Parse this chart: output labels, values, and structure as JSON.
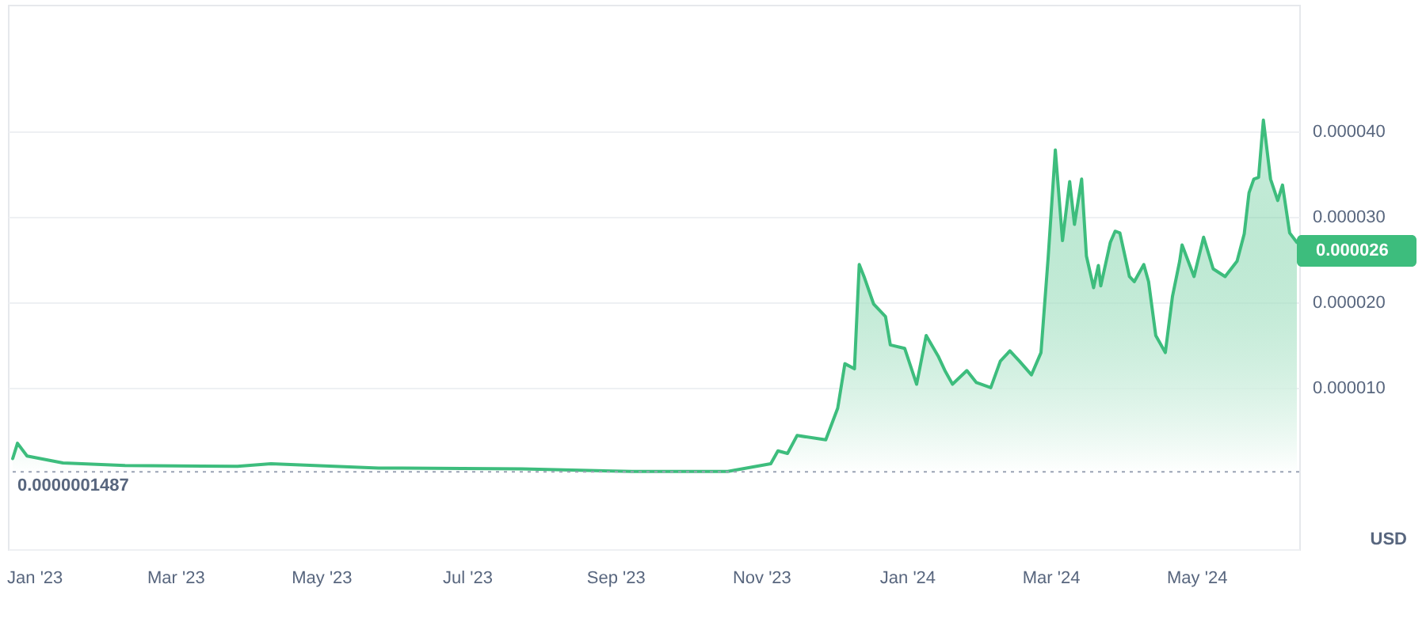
{
  "chart_data": {
    "type": "area",
    "x": [
      "2022-12-23",
      "2022-12-25",
      "2022-12-29",
      "2023-01-13",
      "2023-02-08",
      "2023-03-27",
      "2023-04-10",
      "2023-05-25",
      "2023-07-24",
      "2023-09-08",
      "2023-10-04",
      "2023-10-18",
      "2023-11-05",
      "2023-11-08",
      "2023-11-12",
      "2023-11-16",
      "2023-11-28",
      "2023-12-03",
      "2023-12-06",
      "2023-12-10",
      "2023-12-12",
      "2023-12-14",
      "2023-12-18",
      "2023-12-23",
      "2023-12-25",
      "2023-12-31",
      "2024-01-05",
      "2024-01-09",
      "2024-01-14",
      "2024-01-17",
      "2024-01-20",
      "2024-01-26",
      "2024-01-30",
      "2024-02-05",
      "2024-02-09",
      "2024-02-13",
      "2024-02-17",
      "2024-02-22",
      "2024-02-26",
      "2024-02-29",
      "2024-03-03",
      "2024-03-06",
      "2024-03-09",
      "2024-03-11",
      "2024-03-14",
      "2024-03-16",
      "2024-03-19",
      "2024-03-21",
      "2024-03-22",
      "2024-03-26",
      "2024-03-28",
      "2024-03-30",
      "2024-04-03",
      "2024-04-05",
      "2024-04-09",
      "2024-04-11",
      "2024-04-14",
      "2024-04-18",
      "2024-04-21",
      "2024-04-24",
      "2024-04-25",
      "2024-04-30",
      "2024-05-04",
      "2024-05-08",
      "2024-05-13",
      "2024-05-18",
      "2024-05-21",
      "2024-05-23",
      "2024-05-25",
      "2024-05-27",
      "2024-05-29",
      "2024-06-01",
      "2024-06-04",
      "2024-06-06",
      "2024-06-09",
      "2024-06-12"
    ],
    "series": [
      {
        "color": "#3dbd7d",
        "values": [
          1.7e-06,
          3.5e-06,
          2e-06,
          1.2e-06,
          9e-07,
          8e-07,
          1.1e-06,
          6e-07,
          5e-07,
          2e-07,
          2e-07,
          2e-07,
          1.1e-06,
          2.6e-06,
          2.3e-06,
          4.4e-06,
          3.9e-06,
          7.6e-06,
          1.28e-05,
          1.22e-05,
          2.44e-05,
          2.3e-05,
          1.98e-05,
          1.83e-05,
          1.5e-05,
          1.46e-05,
          1.04e-05,
          1.61e-05,
          1.37e-05,
          1.19e-05,
          1.04e-05,
          1.2e-05,
          1.06e-05,
          1e-05,
          1.31e-05,
          1.43e-05,
          1.31e-05,
          1.15e-05,
          1.41e-05,
          2.52e-05,
          3.78e-05,
          2.72e-05,
          3.41e-05,
          2.91e-05,
          3.44e-05,
          2.54e-05,
          2.17e-05,
          2.43e-05,
          2.19e-05,
          2.7e-05,
          2.83e-05,
          2.81e-05,
          2.3e-05,
          2.24e-05,
          2.44e-05,
          2.24e-05,
          1.61e-05,
          1.41e-05,
          2.07e-05,
          2.48e-05,
          2.67e-05,
          2.3e-05,
          2.76e-05,
          2.39e-05,
          2.3e-05,
          2.48e-05,
          2.8e-05,
          3.28e-05,
          3.44e-05,
          3.46e-05,
          4.13e-05,
          3.44e-05,
          3.19e-05,
          3.37e-05,
          2.81e-05,
          2.7e-05
        ]
      }
    ],
    "xlim": [
      "2022-12-21",
      "2024-06-13"
    ],
    "xticks": [
      {
        "value": "2023-01-01",
        "label": "Jan '23"
      },
      {
        "value": "2023-03-01",
        "label": "Mar '23"
      },
      {
        "value": "2023-05-01",
        "label": "May '23"
      },
      {
        "value": "2023-07-01",
        "label": "Jul '23"
      },
      {
        "value": "2023-09-01",
        "label": "Sep '23"
      },
      {
        "value": "2023-11-01",
        "label": "Nov '23"
      },
      {
        "value": "2024-01-01",
        "label": "Jan '24"
      },
      {
        "value": "2024-03-01",
        "label": "Mar '24"
      },
      {
        "value": "2024-05-01",
        "label": "May '24"
      }
    ],
    "ylim": [
      -8.9e-06,
      5.48e-05
    ],
    "yticks": [
      {
        "value": 1e-05,
        "label": "0.000010"
      },
      {
        "value": 2e-05,
        "label": "0.000020"
      },
      {
        "value": 3e-05,
        "label": "0.000030"
      },
      {
        "value": 4e-05,
        "label": "0.000040"
      }
    ],
    "grid": "y",
    "ref_lines": [
      {
        "axis": "y",
        "value": 1.487e-07,
        "label": "0.0000001487",
        "color": "#9aa3b5",
        "line_style": "dotted"
      }
    ],
    "annotations": [
      {
        "text": "0.000026",
        "x": "2024-06-12",
        "y": 2.6e-05
      },
      "USD"
    ]
  }
}
